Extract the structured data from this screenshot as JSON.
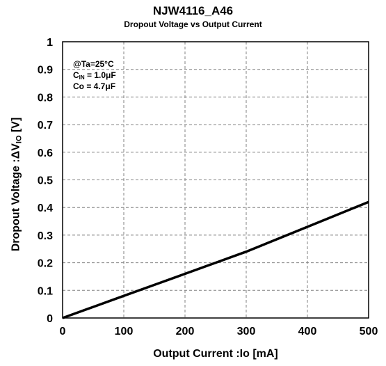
{
  "chart_data": {
    "type": "line",
    "title": "NJW4116_A46",
    "subtitle": "Dropout Voltage vs Output Current",
    "xlabel": "Output Current :Io [mA]",
    "ylabel": {
      "prefix": "Dropout Voltage :ΔV",
      "sub": "IO",
      "suffix": " [V]"
    },
    "xlim": [
      0,
      500
    ],
    "ylim": [
      0,
      1
    ],
    "x_ticks": [
      "0",
      "100",
      "200",
      "300",
      "400",
      "500"
    ],
    "y_ticks": [
      "0",
      "0.1",
      "0.2",
      "0.3",
      "0.4",
      "0.5",
      "0.6",
      "0.7",
      "0.8",
      "0.9",
      "1"
    ],
    "grid": "dashed",
    "annotations": {
      "line1": "@Ta=25°C",
      "line2": {
        "main": "C",
        "sub": "IN",
        "rest": " = 1.0μF"
      },
      "line3": "Co = 4.7μF"
    },
    "series": [
      {
        "x": [
          0,
          50,
          100,
          150,
          200,
          250,
          300,
          350,
          400,
          450,
          500
        ],
        "y": [
          0,
          0.04,
          0.08,
          0.12,
          0.16,
          0.2,
          0.24,
          0.285,
          0.33,
          0.375,
          0.42
        ]
      }
    ],
    "colors": {
      "line": "#000000",
      "grid": "#808080"
    }
  }
}
